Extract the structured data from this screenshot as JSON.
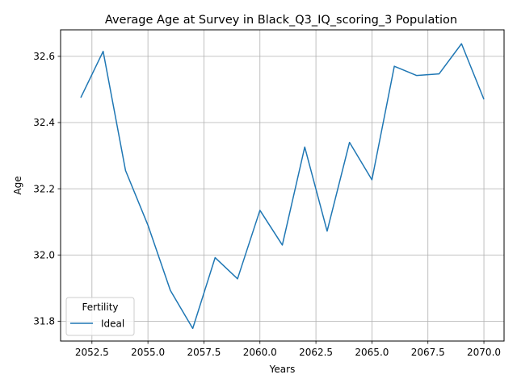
{
  "chart_data": {
    "type": "line",
    "title": "Average Age at Survey in Black_Q3_IQ_scoring_3 Population",
    "xlabel": "Years",
    "ylabel": "Age",
    "xlim": [
      2051.1,
      2070.9
    ],
    "ylim": [
      31.74,
      32.68
    ],
    "x_ticks": [
      2052.5,
      2055.0,
      2057.5,
      2060.0,
      2062.5,
      2065.0,
      2067.5,
      2070.0
    ],
    "x_tick_labels": [
      "2052.5",
      "2055.0",
      "2057.5",
      "2060.0",
      "2062.5",
      "2065.0",
      "2067.5",
      "2070.0"
    ],
    "y_ticks": [
      31.8,
      32.0,
      32.2,
      32.4,
      32.6
    ],
    "y_tick_labels": [
      "31.8",
      "32.0",
      "32.2",
      "32.4",
      "32.6"
    ],
    "grid": true,
    "legend": {
      "title": "Fertility",
      "placement": "lower-left"
    },
    "series": [
      {
        "name": "Ideal",
        "color": "#1f77b4",
        "x": [
          2052,
          2053,
          2054,
          2055,
          2056,
          2057,
          2058,
          2059,
          2060,
          2061,
          2062,
          2063,
          2064,
          2065,
          2066,
          2067,
          2068,
          2069,
          2070
        ],
        "y": [
          32.475,
          32.615,
          32.255,
          32.09,
          31.893,
          31.778,
          31.992,
          31.928,
          32.135,
          32.03,
          32.326,
          32.072,
          32.34,
          32.227,
          32.57,
          32.542,
          32.547,
          32.638,
          32.47
        ]
      }
    ]
  }
}
